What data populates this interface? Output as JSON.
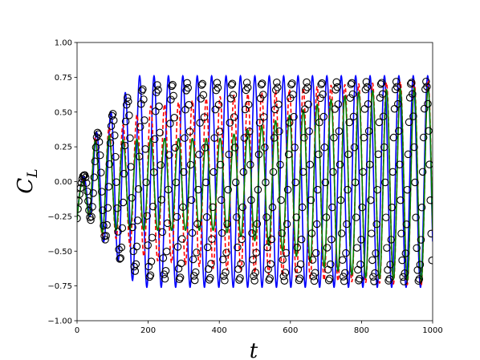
{
  "chart_data": {
    "type": "line",
    "title": "",
    "xlabel": "t",
    "ylabel_main": "C",
    "ylabel_sub": "L",
    "xlim": [
      0,
      1000
    ],
    "ylim": [
      -1.0,
      1.0
    ],
    "x_ticks": [
      0,
      200,
      400,
      600,
      800,
      1000
    ],
    "x_tick_labels": [
      "0",
      "200",
      "400",
      "600",
      "800",
      "1000"
    ],
    "y_ticks": [
      -1.0,
      -0.75,
      -0.5,
      -0.25,
      0.0,
      0.25,
      0.5,
      0.75,
      1.0
    ],
    "y_tick_labels": [
      "−1.00",
      "−0.75",
      "−0.50",
      "−0.25",
      "0.00",
      "0.25",
      "0.50",
      "0.75",
      "1.00"
    ],
    "grid": false,
    "legend": "none",
    "series": [
      {
        "style": "solid",
        "color": "#0000ff",
        "period": 40.5,
        "phase": -0.6,
        "mean": 0.0,
        "amplitude_envelope": [
          [
            0,
            0.02
          ],
          [
            20,
            0.08
          ],
          [
            40,
            0.3
          ],
          [
            80,
            0.45
          ],
          [
            130,
            0.62
          ],
          [
            170,
            0.76
          ],
          [
            1000,
            0.76
          ]
        ]
      },
      {
        "style": "dashed",
        "color": "#ff0000",
        "period": 39.0,
        "phase": -0.4,
        "mean": -0.01,
        "amplitude_envelope": [
          [
            0,
            0.02
          ],
          [
            20,
            0.08
          ],
          [
            40,
            0.3
          ],
          [
            80,
            0.4
          ],
          [
            120,
            0.4
          ],
          [
            200,
            0.55
          ],
          [
            400,
            0.62
          ],
          [
            700,
            0.7
          ],
          [
            1000,
            0.74
          ]
        ]
      },
      {
        "style": "solid",
        "color": "#008000",
        "period": 39.0,
        "phase": -0.4,
        "mean": -0.02,
        "amplitude_envelope": [
          [
            0,
            0.02
          ],
          [
            20,
            0.08
          ],
          [
            40,
            0.3
          ],
          [
            80,
            0.36
          ],
          [
            120,
            0.32
          ],
          [
            200,
            0.33
          ],
          [
            400,
            0.33
          ],
          [
            520,
            0.42
          ],
          [
            600,
            0.5
          ],
          [
            700,
            0.6
          ],
          [
            800,
            0.67
          ],
          [
            1000,
            0.7
          ]
        ]
      },
      {
        "style": "circles",
        "color": "#000000",
        "period": 42.0,
        "phase": -0.8,
        "mean": 0.0,
        "spacing": 2.4,
        "amplitude_envelope": [
          [
            0,
            0.02
          ],
          [
            20,
            0.08
          ],
          [
            40,
            0.3
          ],
          [
            80,
            0.42
          ],
          [
            120,
            0.56
          ],
          [
            160,
            0.64
          ],
          [
            200,
            0.69
          ],
          [
            300,
            0.71
          ],
          [
            1000,
            0.72
          ]
        ]
      }
    ]
  }
}
